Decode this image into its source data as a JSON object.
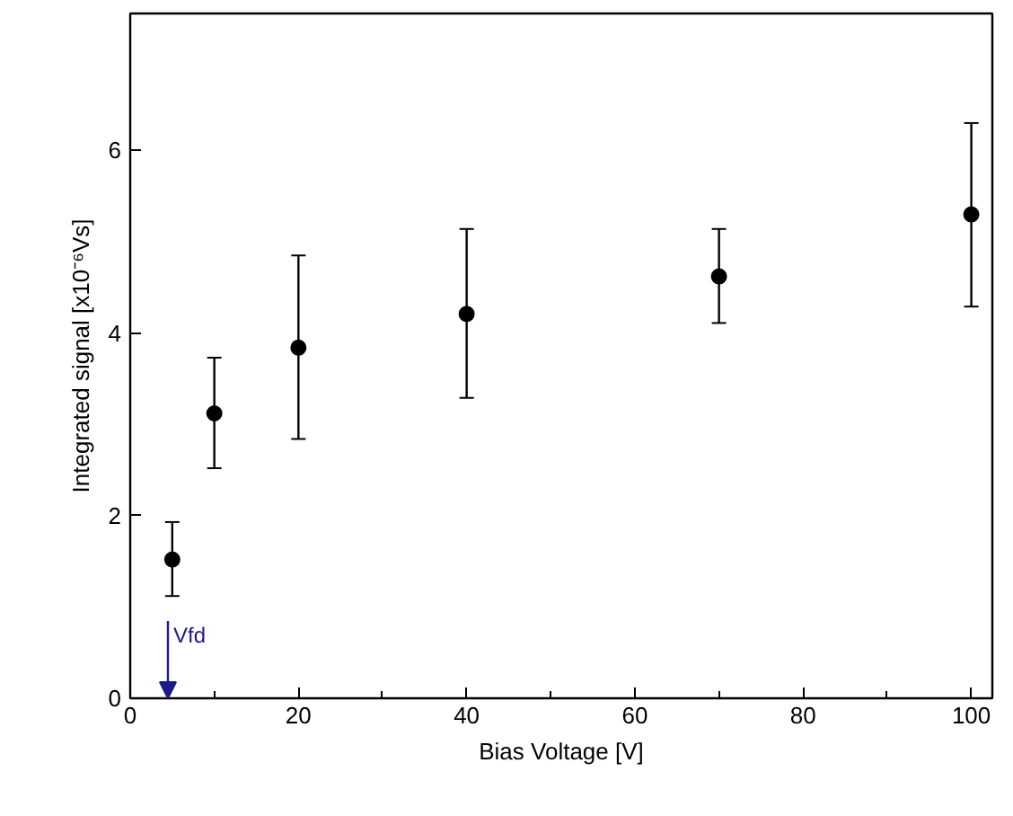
{
  "chart_data": {
    "type": "scatter",
    "xlabel": "Bias Voltage [V]",
    "ylabel": "Integrated signal [x10⁻⁶Vs]",
    "x": [
      5,
      10,
      20,
      40,
      70,
      100
    ],
    "series": [
      {
        "color": "#000000",
        "values": [
          1.52,
          3.12,
          3.84,
          4.21,
          4.62,
          5.3
        ],
        "errors": [
          [
            1.12,
            1.93
          ],
          [
            2.52,
            3.73
          ],
          [
            2.84,
            4.85
          ],
          [
            3.29,
            5.14
          ],
          [
            4.11,
            5.14
          ],
          [
            4.29,
            6.3
          ]
        ]
      }
    ],
    "xlim": [
      0,
      102.5
    ],
    "ylim": [
      0,
      7.5
    ],
    "xticks": [
      0,
      {
        "value": 10,
        "label": null
      },
      20,
      {
        "value": 30,
        "label": null
      },
      40,
      {
        "value": 50,
        "label": null
      },
      60,
      {
        "value": 70,
        "label": null
      },
      80,
      {
        "value": 90,
        "label": null
      },
      100
    ],
    "yticks": [
      0,
      2,
      4,
      6
    ],
    "annotations": [
      "Vfd"
    ],
    "grid": false,
    "marker": "circle"
  }
}
